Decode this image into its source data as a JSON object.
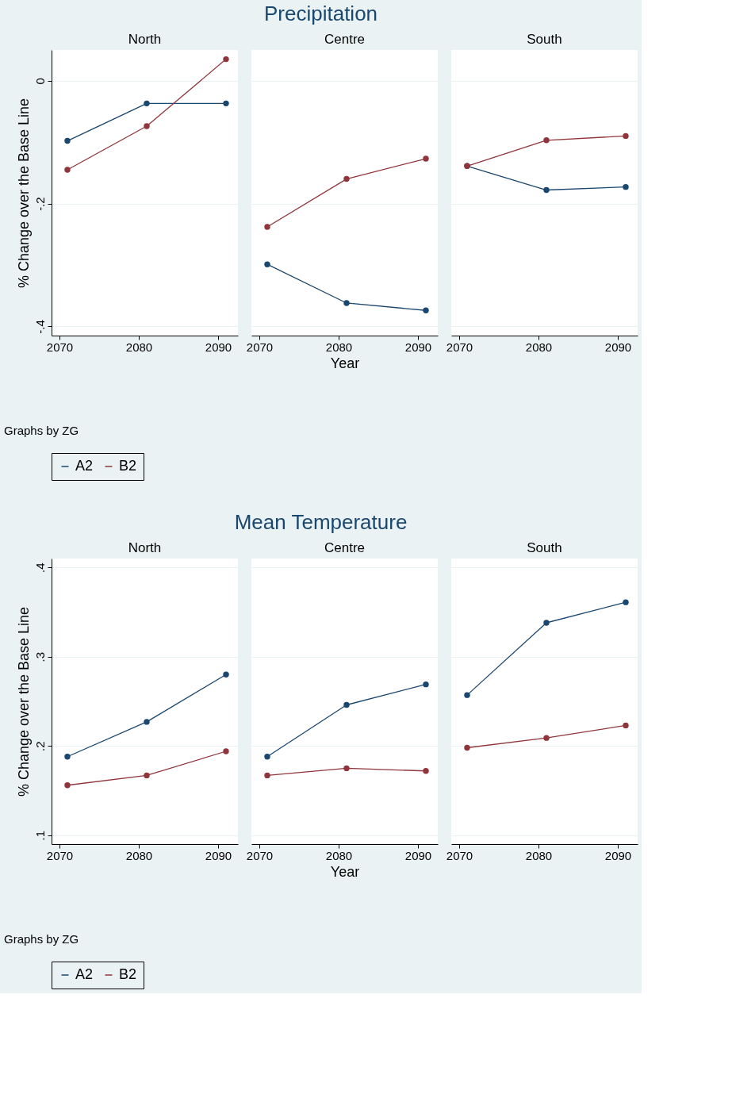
{
  "chart_data": [
    {
      "type": "line",
      "subtitle": "North",
      "legend": "bottom",
      "ylabel": "% Change over the Base Line",
      "x": [
        2071,
        2081,
        2091
      ],
      "xlim": [
        2069,
        2092.5
      ],
      "xticks": [
        2070,
        2080,
        2090
      ],
      "ylim": [
        -0.415,
        0.05
      ],
      "yticks": [
        0,
        {
          "value": -0.2,
          "label": "-.2"
        },
        {
          "value": -0.4,
          "label": "-.4"
        }
      ],
      "grid": "y",
      "marker": "circle",
      "line_style": "solid",
      "annotations": [
        "Graphs by ZG"
      ],
      "series": [
        {
          "name": "A2",
          "color": "#1a476f",
          "values": [
            -0.098,
            -0.037,
            -0.037
          ]
        },
        {
          "name": "B2",
          "color": "#90353b",
          "values": [
            -0.145,
            -0.074,
            0.035
          ]
        }
      ]
    },
    {
      "type": "line",
      "title": "Precipitation",
      "subtitle": "Centre",
      "xlabel": "Year",
      "x": [
        2071,
        2081,
        2091
      ],
      "xlim": [
        2069,
        2092.5
      ],
      "xticks": [
        2070,
        2080,
        2090
      ],
      "ylim": [
        -0.415,
        0.05
      ],
      "yticks": [
        0,
        -0.2,
        -0.4
      ],
      "grid": "y",
      "marker": "circle",
      "line_style": "solid",
      "legend": "bottom",
      "tick_labels": "x",
      "series": [
        {
          "name": "A2",
          "color": "#1a476f",
          "values": [
            -0.299,
            -0.362,
            -0.374
          ]
        },
        {
          "name": "B2",
          "color": "#90353b",
          "values": [
            -0.238,
            -0.16,
            -0.127
          ]
        }
      ]
    },
    {
      "type": "line",
      "subtitle": "South",
      "x": [
        2071,
        2081,
        2091
      ],
      "xlim": [
        2069,
        2092.5
      ],
      "xticks": [
        2070,
        2080,
        2090
      ],
      "ylim": [
        -0.415,
        0.05
      ],
      "yticks": [
        0,
        -0.2,
        -0.4
      ],
      "grid": "y",
      "marker": "circle",
      "line_style": "solid",
      "tick_labels": "x",
      "legend": "bottom",
      "series": [
        {
          "name": "A2",
          "color": "#1a476f",
          "values": [
            -0.139,
            -0.178,
            -0.173
          ]
        },
        {
          "name": "B2",
          "color": "#90353b",
          "values": [
            -0.139,
            -0.097,
            -0.09
          ]
        }
      ]
    },
    {
      "type": "line",
      "subtitle": "North",
      "legend": "bottom",
      "ylabel": "% Change over the Base Line",
      "x": [
        2071,
        2081,
        2091
      ],
      "xlim": [
        2069,
        2092.5
      ],
      "xticks": [
        2070,
        2080,
        2090
      ],
      "ylim": [
        0.09,
        0.41
      ],
      "yticks": [
        {
          "value": 0.1,
          "label": ".1"
        },
        {
          "value": 0.2,
          "label": ".2"
        },
        {
          "value": 0.3,
          "label": ".3"
        },
        {
          "value": 0.4,
          "label": ".4"
        }
      ],
      "grid": "y",
      "marker": "circle",
      "line_style": "solid",
      "annotations": [
        "Graphs by ZG"
      ],
      "series": [
        {
          "name": "A2",
          "color": "#1a476f",
          "values": [
            0.188,
            0.227,
            0.28
          ]
        },
        {
          "name": "B2",
          "color": "#90353b",
          "values": [
            0.156,
            0.167,
            0.194
          ]
        }
      ]
    },
    {
      "type": "line",
      "title": "Mean Temperature",
      "subtitle": "Centre",
      "xlabel": "Year",
      "x": [
        2071,
        2081,
        2091
      ],
      "xlim": [
        2069,
        2092.5
      ],
      "xticks": [
        2070,
        2080,
        2090
      ],
      "ylim": [
        0.09,
        0.41
      ],
      "yticks": [
        0.1,
        0.2,
        0.3,
        0.4
      ],
      "grid": "y",
      "marker": "circle",
      "line_style": "solid",
      "legend": "bottom",
      "tick_labels": "x",
      "series": [
        {
          "name": "A2",
          "color": "#1a476f",
          "values": [
            0.188,
            0.246,
            0.269
          ]
        },
        {
          "name": "B2",
          "color": "#90353b",
          "values": [
            0.167,
            0.175,
            0.172
          ]
        }
      ]
    },
    {
      "type": "line",
      "subtitle": "South",
      "x": [
        2071,
        2081,
        2091
      ],
      "xlim": [
        2069,
        2092.5
      ],
      "xticks": [
        2070,
        2080,
        2090
      ],
      "ylim": [
        0.09,
        0.41
      ],
      "yticks": [
        0.1,
        0.2,
        0.3,
        0.4
      ],
      "grid": "y",
      "marker": "circle",
      "line_style": "solid",
      "tick_labels": "x",
      "legend": "bottom",
      "series": [
        {
          "name": "A2",
          "color": "#1a476f",
          "values": [
            0.257,
            0.338,
            0.361
          ]
        },
        {
          "name": "B2",
          "color": "#90353b",
          "values": [
            0.198,
            0.209,
            0.223
          ]
        }
      ]
    }
  ]
}
